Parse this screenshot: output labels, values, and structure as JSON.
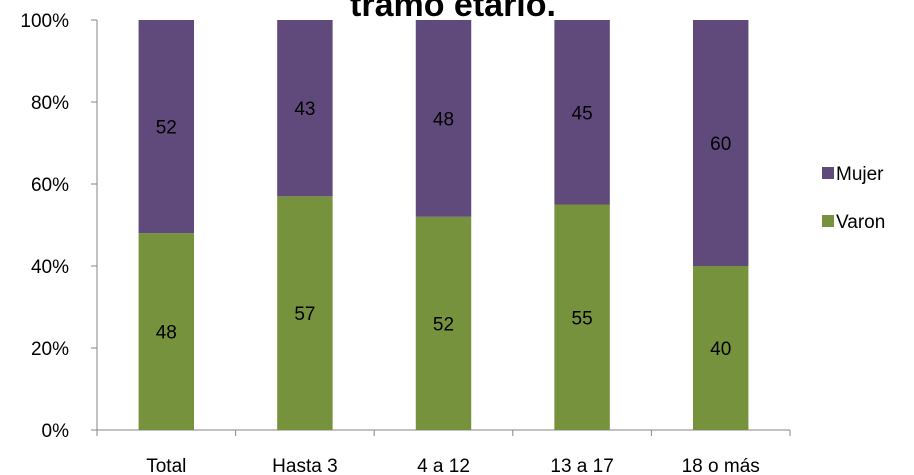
{
  "chart_data": {
    "type": "bar",
    "stacked": true,
    "percent_stacked": true,
    "title": "tramo etario.",
    "categories": [
      "Total",
      "Hasta 3",
      "4 a 12",
      "13 a 17",
      "18 o más"
    ],
    "series": [
      {
        "name": "Varon",
        "color": "#76923C",
        "values": [
          48,
          57,
          52,
          55,
          40
        ]
      },
      {
        "name": "Mujer",
        "color": "#604A7B",
        "values": [
          52,
          43,
          48,
          45,
          60
        ]
      }
    ],
    "ylim": [
      0,
      100
    ],
    "yticks": [
      "0%",
      "20%",
      "40%",
      "60%",
      "80%",
      "100%"
    ],
    "grid": false,
    "legend_position": "right",
    "legend_order": [
      "Mujer",
      "Varon"
    ]
  }
}
